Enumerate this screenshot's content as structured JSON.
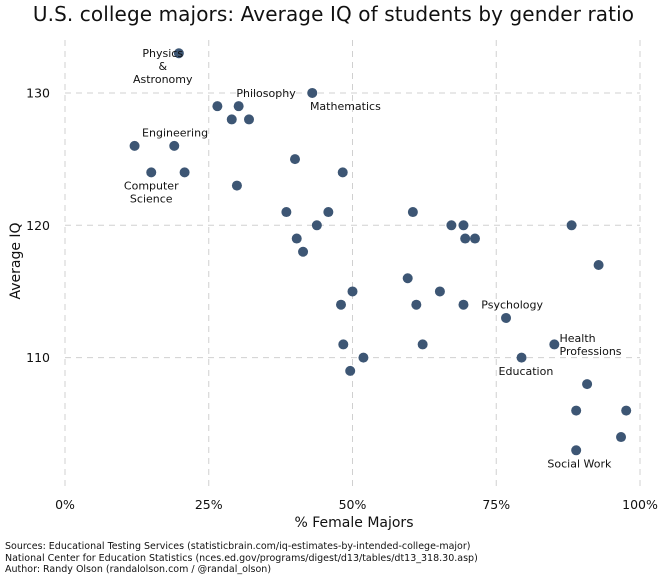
{
  "chart_data": {
    "type": "scatter",
    "title": "U.S. college majors: Average IQ of students by gender ratio",
    "xlabel": "% Female Majors",
    "ylabel": "Average IQ",
    "xlim": [
      0,
      100
    ],
    "ylim": [
      100,
      134
    ],
    "x_ticks": [
      {
        "value": 0,
        "label": "0%"
      },
      {
        "value": 25,
        "label": "25%"
      },
      {
        "value": 50,
        "label": "50%"
      },
      {
        "value": 75,
        "label": "75%"
      },
      {
        "value": 100,
        "label": "100%"
      }
    ],
    "y_ticks": [
      {
        "value": 110,
        "label": "110"
      },
      {
        "value": 120,
        "label": "120"
      },
      {
        "value": 130,
        "label": "130"
      }
    ],
    "grid": true,
    "marker_color": "#3d5674",
    "points": [
      {
        "x": 19.8,
        "y": 133
      },
      {
        "x": 43.0,
        "y": 130
      },
      {
        "x": 26.5,
        "y": 129
      },
      {
        "x": 30.2,
        "y": 129
      },
      {
        "x": 29.0,
        "y": 128
      },
      {
        "x": 32.0,
        "y": 128
      },
      {
        "x": 12.1,
        "y": 126
      },
      {
        "x": 19.0,
        "y": 126
      },
      {
        "x": 15.0,
        "y": 124
      },
      {
        "x": 20.8,
        "y": 124
      },
      {
        "x": 29.9,
        "y": 123
      },
      {
        "x": 40.0,
        "y": 125
      },
      {
        "x": 48.3,
        "y": 124
      },
      {
        "x": 38.5,
        "y": 121
      },
      {
        "x": 45.8,
        "y": 121
      },
      {
        "x": 60.5,
        "y": 121
      },
      {
        "x": 43.8,
        "y": 120
      },
      {
        "x": 40.3,
        "y": 119
      },
      {
        "x": 41.4,
        "y": 118
      },
      {
        "x": 67.2,
        "y": 120
      },
      {
        "x": 69.3,
        "y": 120
      },
      {
        "x": 69.6,
        "y": 119
      },
      {
        "x": 71.3,
        "y": 119
      },
      {
        "x": 88.1,
        "y": 120
      },
      {
        "x": 92.8,
        "y": 117
      },
      {
        "x": 59.6,
        "y": 116
      },
      {
        "x": 50.0,
        "y": 115
      },
      {
        "x": 65.2,
        "y": 115
      },
      {
        "x": 48.0,
        "y": 114
      },
      {
        "x": 61.1,
        "y": 114
      },
      {
        "x": 69.3,
        "y": 114
      },
      {
        "x": 76.7,
        "y": 113
      },
      {
        "x": 48.4,
        "y": 111
      },
      {
        "x": 62.2,
        "y": 111
      },
      {
        "x": 85.1,
        "y": 111
      },
      {
        "x": 51.9,
        "y": 110
      },
      {
        "x": 79.4,
        "y": 110
      },
      {
        "x": 49.6,
        "y": 109
      },
      {
        "x": 90.8,
        "y": 108
      },
      {
        "x": 88.9,
        "y": 106
      },
      {
        "x": 97.6,
        "y": 106
      },
      {
        "x": 96.7,
        "y": 104
      },
      {
        "x": 88.9,
        "y": 103
      }
    ],
    "annotations": [
      {
        "text": "Physics\n&\nAstronomy",
        "x": 17.0,
        "y": 133,
        "align": "center"
      },
      {
        "text": "Philosophy",
        "x": 29.8,
        "y": 130,
        "align": "start"
      },
      {
        "text": "Mathematics",
        "x": 42.6,
        "y": 129,
        "align": "start"
      },
      {
        "text": "Engineering",
        "x": 13.4,
        "y": 127,
        "align": "start"
      },
      {
        "text": "Computer\nScience",
        "x": 15.0,
        "y": 123,
        "align": "center"
      },
      {
        "text": "Psychology",
        "x": 72.4,
        "y": 114,
        "align": "start"
      },
      {
        "text": "Health\nProfessions",
        "x": 86.0,
        "y": 111.5,
        "align": "start"
      },
      {
        "text": "Education",
        "x": 75.4,
        "y": 109,
        "align": "start"
      },
      {
        "text": "Social Work",
        "x": 83.9,
        "y": 102,
        "align": "start"
      }
    ]
  },
  "sources": [
    "Sources: Educational Testing Services (statisticbrain.com/iq-estimates-by-intended-college-major)",
    "National Center for Education Statistics (nces.ed.gov/programs/digest/d13/tables/dt13_318.30.asp)",
    "Author: Randy Olson (randalolson.com / @randal_olson)"
  ]
}
